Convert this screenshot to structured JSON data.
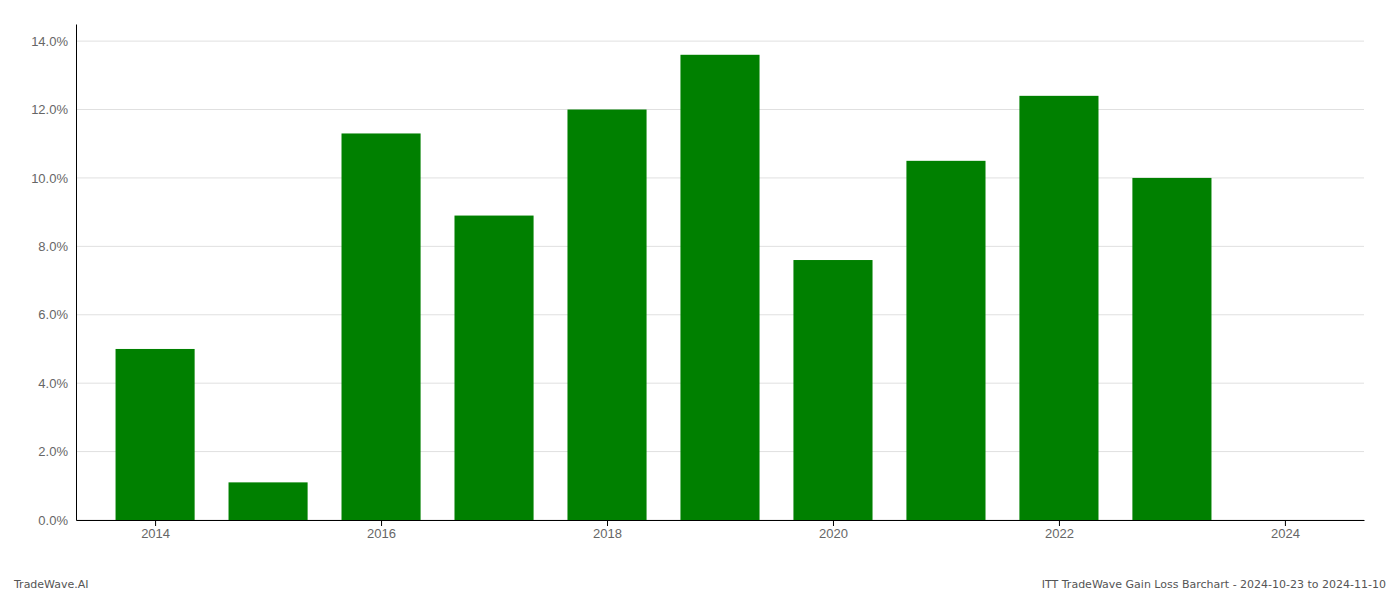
{
  "chart_data": {
    "type": "bar",
    "x": [
      2014,
      2015,
      2016,
      2017,
      2018,
      2019,
      2020,
      2021,
      2022,
      2023
    ],
    "values": [
      0.05,
      0.011,
      0.113,
      0.089,
      0.12,
      0.136,
      0.076,
      0.105,
      0.124,
      0.1
    ],
    "color": "#008000",
    "xlim": [
      2013.3,
      2024.7
    ],
    "xticks": [
      2014,
      2016,
      2018,
      2020,
      2022,
      2024
    ],
    "ylim": [
      0,
      0.145
    ],
    "yticks": [
      {
        "value": 0.0,
        "label": "0.0%"
      },
      {
        "value": 0.02,
        "label": "2.0%"
      },
      {
        "value": 0.04,
        "label": "4.0%"
      },
      {
        "value": 0.06,
        "label": "6.0%"
      },
      {
        "value": 0.08,
        "label": "8.0%"
      },
      {
        "value": 0.1,
        "label": "10.0%"
      },
      {
        "value": 0.12,
        "label": "12.0%"
      },
      {
        "value": 0.14,
        "label": "14.0%"
      }
    ],
    "grid": true,
    "annotations": [
      "TradeWave.AI",
      "ITT TradeWave Gain Loss Barchart - 2024-10-23 to 2024-11-10"
    ]
  }
}
